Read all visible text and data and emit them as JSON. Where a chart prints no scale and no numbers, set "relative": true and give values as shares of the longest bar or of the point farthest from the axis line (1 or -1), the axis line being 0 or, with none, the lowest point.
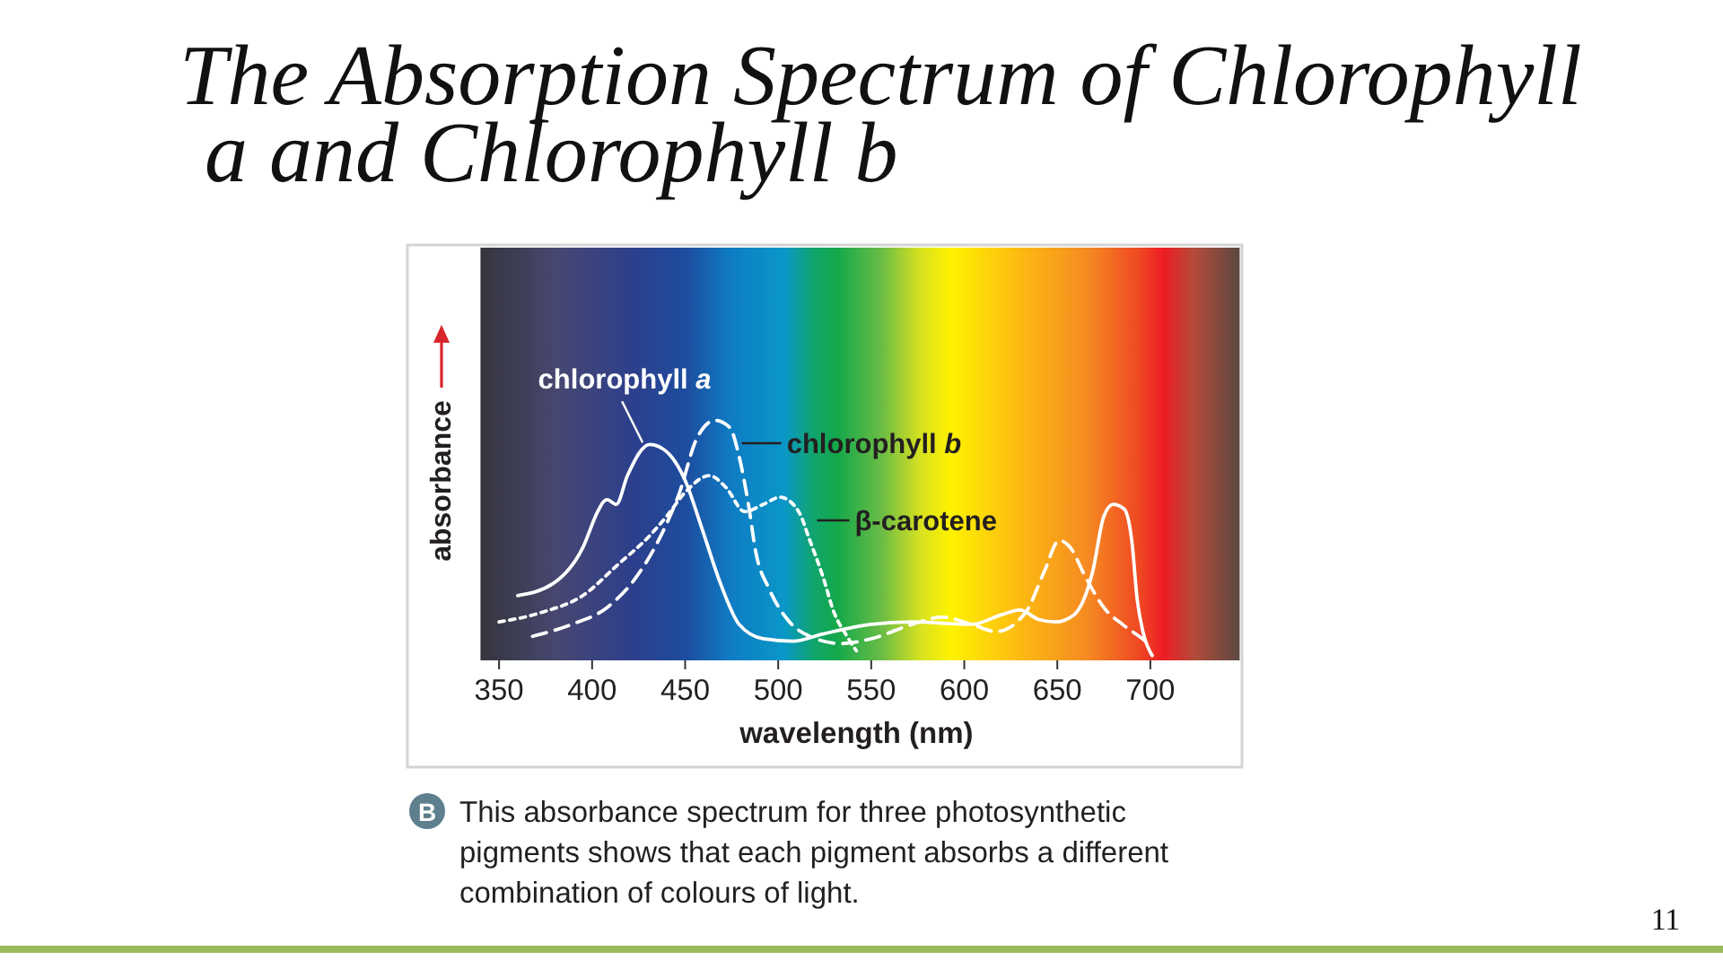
{
  "chart_data": {
    "type": "line",
    "title": "The Absorption Spectrum of Chlorophyll a and Chlorophyll b",
    "xlabel": "wavelength (nm)",
    "ylabel": "absorbance",
    "relative": true,
    "xlim": [
      340,
      748
    ],
    "xticks": [
      350,
      400,
      450,
      500,
      550,
      600,
      650,
      700
    ],
    "annotations": [
      "B",
      "This absorbance spectrum for three photosynthetic pigments shows that each pigment absorbs a different combination of colours of light.",
      "11"
    ],
    "series": [
      {
        "name": "chlorophyll a",
        "color": "#ffffff",
        "line_style": "solid",
        "x": [
          360,
          379,
          395,
          403,
          406,
          408,
          413,
          419,
          431,
          440,
          450,
          459,
          469,
          479,
          492,
          508,
          524,
          550,
          572,
          604,
          620,
          630,
          640,
          649,
          659,
          669,
          675,
          680,
          686,
          690,
          693,
          696,
          701
        ],
        "values": [
          0.27,
          0.32,
          0.47,
          0.62,
          0.66,
          0.67,
          0.65,
          0.77,
          0.9,
          0.87,
          0.75,
          0.55,
          0.32,
          0.15,
          0.09,
          0.08,
          0.11,
          0.15,
          0.16,
          0.15,
          0.19,
          0.21,
          0.17,
          0.16,
          0.19,
          0.37,
          0.6,
          0.65,
          0.63,
          0.5,
          0.25,
          0.12,
          0.02
        ]
      },
      {
        "name": "chlorophyll b",
        "color": "#ffffff",
        "line_style": "dashed",
        "x": [
          368,
          389,
          408,
          424,
          437,
          447,
          456,
          466,
          474,
          479,
          484,
          488,
          495,
          505,
          517,
          534,
          550,
          572,
          588,
          604,
          617,
          633,
          643,
          651,
          657,
          665,
          675,
          685,
          694,
          699
        ],
        "values": [
          0.1,
          0.15,
          0.22,
          0.35,
          0.52,
          0.7,
          0.92,
          1.0,
          0.97,
          0.85,
          0.65,
          0.45,
          0.3,
          0.17,
          0.1,
          0.07,
          0.09,
          0.15,
          0.18,
          0.15,
          0.12,
          0.2,
          0.37,
          0.5,
          0.47,
          0.35,
          0.22,
          0.15,
          0.1,
          0.07
        ]
      },
      {
        "name": "β-carotene",
        "color": "#ffffff",
        "line_style": "dotted",
        "x": [
          350,
          373,
          395,
          414,
          431,
          440,
          450,
          463,
          472,
          482,
          492,
          501,
          511,
          517,
          524,
          530,
          537,
          542
        ],
        "values": [
          0.16,
          0.2,
          0.27,
          0.4,
          0.52,
          0.6,
          0.7,
          0.77,
          0.72,
          0.62,
          0.65,
          0.68,
          0.62,
          0.5,
          0.35,
          0.2,
          0.1,
          0.04
        ]
      }
    ]
  }
}
